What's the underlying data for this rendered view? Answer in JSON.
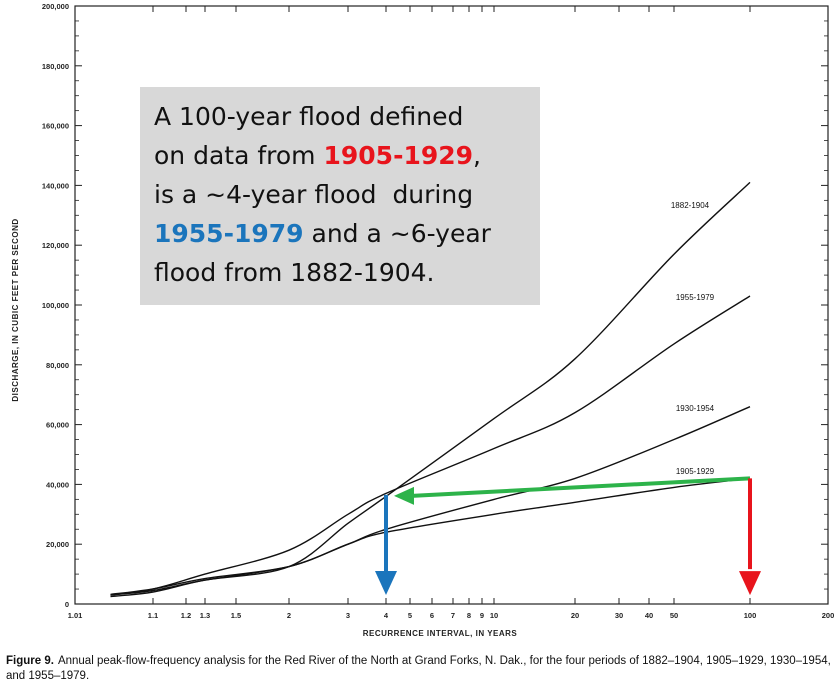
{
  "chart_data": {
    "type": "line",
    "x_scale": "probability",
    "xlabel": "RECURRENCE INTERVAL, IN YEARS",
    "ylabel": "DISCHARGE, IN CUBIC FEET PER SECOND",
    "ylim": [
      0,
      200000
    ],
    "xlim": [
      1.01,
      200
    ],
    "x_ticks": [
      "1.01",
      "1.1",
      "1.2",
      "1.3",
      "1.5",
      "2",
      "3",
      "4",
      "5",
      "6",
      "7",
      "8",
      "9",
      "10",
      "20",
      "30",
      "40",
      "50",
      "100",
      "200"
    ],
    "y_ticks": [
      "0",
      "20,000",
      "40,000",
      "60,000",
      "80,000",
      "100,000",
      "120,000",
      "140,000",
      "160,000",
      "180,000",
      "200,000"
    ],
    "grid": false,
    "series": [
      {
        "name": "1882-1904",
        "color": "#111111",
        "x": [
          1.05,
          1.1,
          1.3,
          2,
          3,
          4,
          10,
          20,
          50,
          100
        ],
        "y": [
          2500,
          4000,
          8000,
          12500,
          27000,
          36000,
          62000,
          82000,
          117000,
          141000
        ]
      },
      {
        "name": "1955-1979",
        "color": "#111111",
        "x": [
          1.05,
          1.1,
          1.3,
          2,
          3,
          4,
          10,
          20,
          50,
          100
        ],
        "y": [
          3000,
          5000,
          10000,
          18000,
          30000,
          37000,
          52000,
          64000,
          87000,
          103000
        ]
      },
      {
        "name": "1930-1954",
        "color": "#111111",
        "x": [
          1.05,
          1.1,
          1.3,
          2,
          3,
          4,
          10,
          20,
          50,
          100
        ],
        "y": [
          3000,
          4500,
          8000,
          12500,
          20000,
          25000,
          35000,
          42000,
          55000,
          66000
        ]
      },
      {
        "name": "1905-1929",
        "color": "#111111",
        "x": [
          1.05,
          1.1,
          1.3,
          2,
          3,
          4,
          10,
          20,
          50,
          100
        ],
        "y": [
          3200,
          5000,
          8500,
          12500,
          20000,
          24000,
          30000,
          34000,
          39000,
          42000
        ]
      }
    ],
    "annotations": {
      "arrows": [
        {
          "from": [
            100,
            42000
          ],
          "to": [
            4,
            36500
          ],
          "color": "#2db34a"
        },
        {
          "from": [
            100,
            42000
          ],
          "to": [
            100,
            7000
          ],
          "color": "#e8141c"
        },
        {
          "from": [
            4,
            36500
          ],
          "to": [
            4,
            3000
          ],
          "color": "#1b75bc"
        }
      ]
    }
  },
  "note": {
    "line1": "A 100-year flood defined",
    "line2_pre": "on data from ",
    "line2_red": "1905-1929",
    "line2_post": ",",
    "line3": "is a ~4-year flood  during",
    "line4_blue": "1955-1979",
    "line4_post": " and a ~6-year",
    "line5": "flood from 1882-1904."
  },
  "caption": {
    "figure_label": "Figure 9.",
    "text": "Annual peak-flow-frequency analysis for the Red River of the North at Grand Forks, N. Dak., for the four periods of 1882–1904, 1905–1929, 1930–1954, and 1955–1979."
  }
}
